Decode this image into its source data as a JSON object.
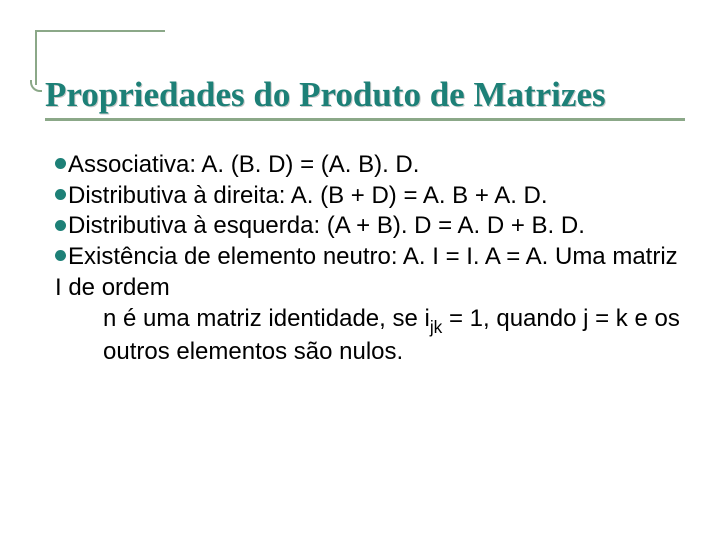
{
  "accent_color": "#8ba888",
  "title_color": "#1d8077",
  "bullet_color": "#1d8077",
  "text_color": "#000000",
  "background_color": "#ffffff",
  "title": "Propriedades do Produto de Matrizes",
  "title_fontsize": 35,
  "body_fontsize": 24,
  "items": {
    "assoc_label": "Associativa:",
    "assoc_rest": " A. (B. D) = (A. B). D.",
    "dist_r_label": "Distributiva",
    "dist_r_rest": " à direita: A. (B + D) = A. B + A. D.",
    "dist_l_label": "Distributiva",
    "dist_l_rest": " à esquerda: (A + B). D = A. D + B. D.",
    "neutro_label": "Existência",
    "neutro_rest": " de elemento neutro: A. I = I. A = A. Uma matriz I de ordem",
    "indent_pre": "n é uma matriz identidade, se i",
    "indent_sub": "jk",
    "indent_post": " = 1, quando j = k e os outros elementos são nulos."
  }
}
